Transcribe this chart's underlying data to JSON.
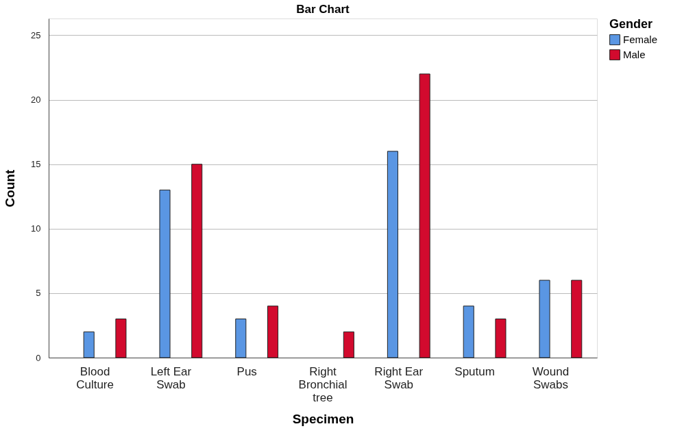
{
  "chart_data": {
    "type": "bar",
    "title": "Bar Chart",
    "xlabel": "Specimen",
    "ylabel": "Count",
    "legend_title": "Gender",
    "categories": [
      "Blood\nCulture",
      "Left Ear\nSwab",
      "Pus",
      "Right\nBronchial\ntree",
      "Right Ear\nSwab",
      "Sputum",
      "Wound\nSwabs"
    ],
    "series": [
      {
        "name": "Female",
        "color": "#5a96e3",
        "values": [
          2,
          13,
          3,
          null,
          16,
          4,
          6
        ]
      },
      {
        "name": "Male",
        "color": "#d20a2e",
        "values": [
          3,
          15,
          4,
          2,
          22,
          3,
          6
        ]
      }
    ],
    "ylim": [
      0,
      26.3
    ],
    "yticks": [
      0,
      5,
      10,
      15,
      20,
      25
    ],
    "grid": "y",
    "legend": "top right"
  }
}
